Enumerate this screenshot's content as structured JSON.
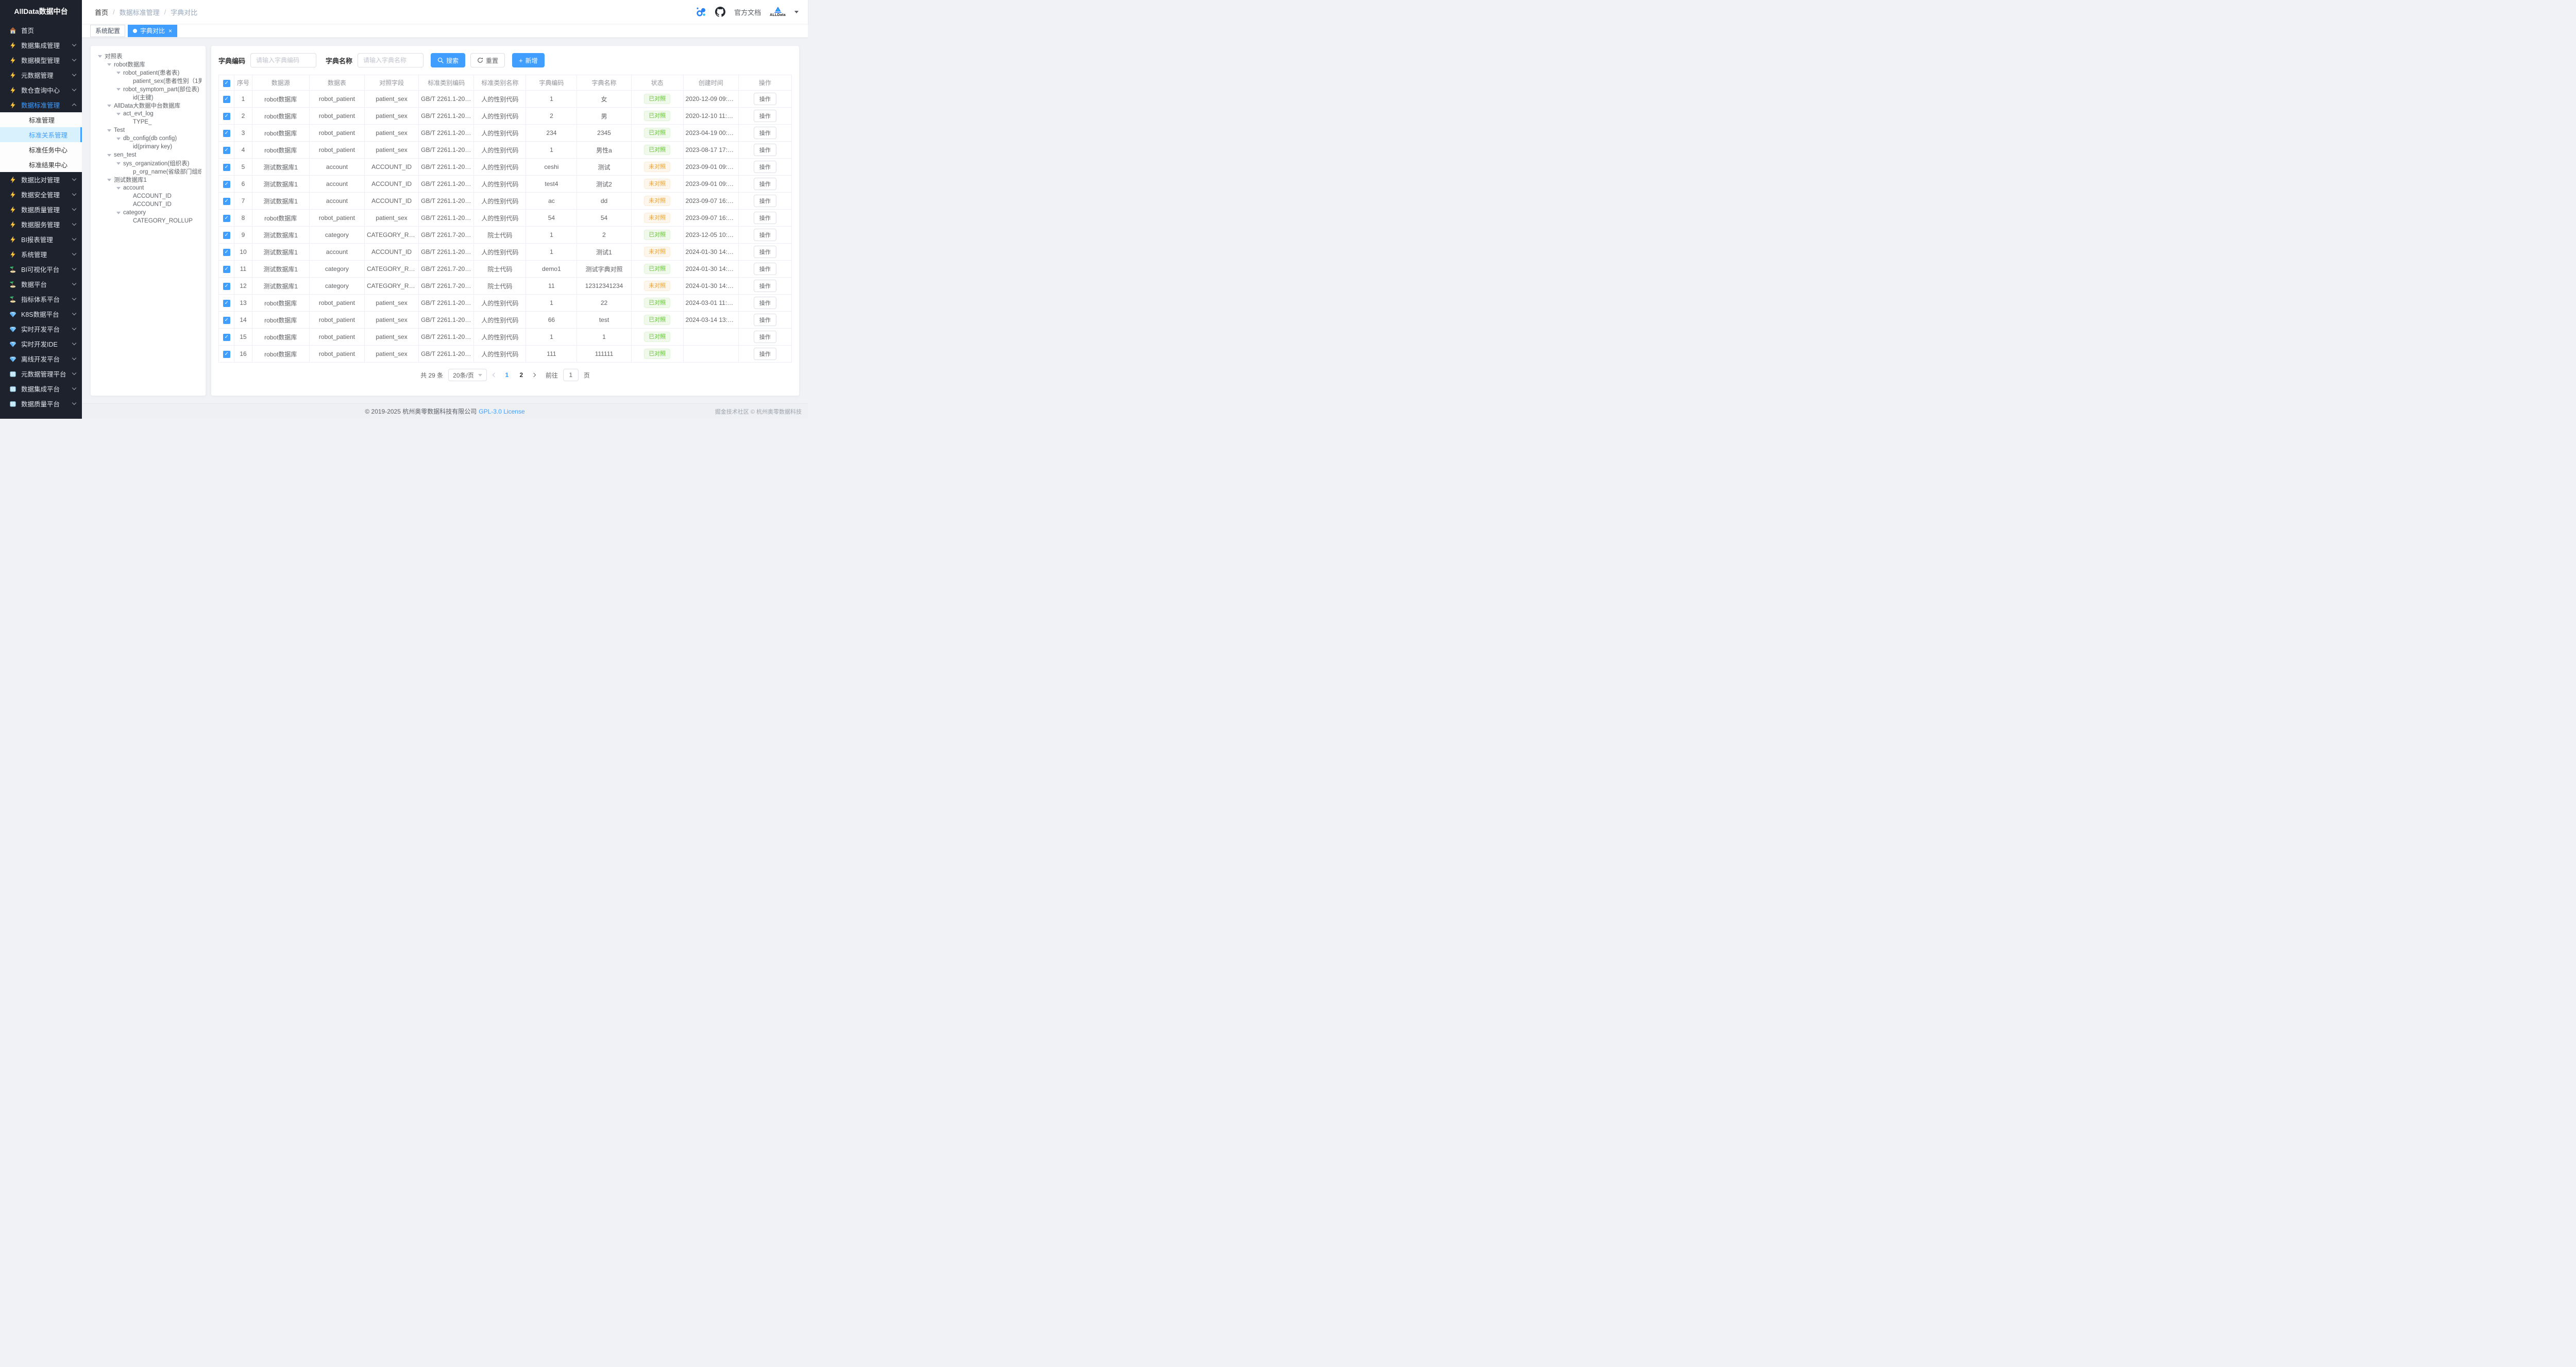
{
  "sidebar": {
    "title": "AllData数据中台",
    "items": [
      {
        "label": "首页",
        "icon": "home-icon"
      },
      {
        "label": "数据集成管理",
        "icon": "bolt-icon",
        "chevron": "down"
      },
      {
        "label": "数据模型管理",
        "icon": "bolt-icon",
        "chevron": "down"
      },
      {
        "label": "元数据管理",
        "icon": "bolt-icon",
        "chevron": "down"
      },
      {
        "label": "数仓查询中心",
        "icon": "bolt-icon",
        "chevron": "down"
      },
      {
        "label": "数据标准管理",
        "icon": "bolt-icon",
        "chevron": "up",
        "active": true
      },
      {
        "label": "标准管理",
        "sub": true
      },
      {
        "label": "标准关系管理",
        "sub": true,
        "selected": true
      },
      {
        "label": "标准任务中心",
        "sub": true
      },
      {
        "label": "标准结果中心",
        "sub": true
      },
      {
        "label": "数据比对管理",
        "icon": "bolt-icon",
        "chevron": "down"
      },
      {
        "label": "数据安全管理",
        "icon": "bolt-icon",
        "chevron": "down"
      },
      {
        "label": "数据质量管理",
        "icon": "bolt-icon",
        "chevron": "down"
      },
      {
        "label": "数据服务管理",
        "icon": "bolt-icon",
        "chevron": "down"
      },
      {
        "label": "BI报表管理",
        "icon": "bolt-icon",
        "chevron": "down"
      },
      {
        "label": "系统管理",
        "icon": "bolt-icon",
        "chevron": "down"
      },
      {
        "label": "BI可视化平台",
        "icon": "island-icon",
        "chevron": "down"
      },
      {
        "label": "数据平台",
        "icon": "island-icon",
        "chevron": "down"
      },
      {
        "label": "指标体系平台",
        "icon": "island-icon",
        "chevron": "down"
      },
      {
        "label": "K8S数据平台",
        "icon": "gem-icon",
        "chevron": "down"
      },
      {
        "label": "实时开发平台",
        "icon": "gem-icon",
        "chevron": "down"
      },
      {
        "label": "实时开发IDE",
        "icon": "gem-icon",
        "chevron": "down"
      },
      {
        "label": "离线开发平台",
        "icon": "gem-icon",
        "chevron": "down"
      },
      {
        "label": "元数据管理平台",
        "icon": "ice-icon",
        "chevron": "down"
      },
      {
        "label": "数据集成平台",
        "icon": "ice-icon",
        "chevron": "down"
      },
      {
        "label": "数据质量平台",
        "icon": "ice-icon",
        "chevron": "down"
      }
    ]
  },
  "header": {
    "breadcrumb": [
      "首页",
      "数据标准管理",
      "字典对比"
    ],
    "breadcrumb_sep": "/",
    "docs_label": "官方文档",
    "logo_text": "ALLData"
  },
  "tabbar": {
    "tabs": [
      {
        "label": "系统配置",
        "active": false
      },
      {
        "label": "字典对比",
        "active": true,
        "closable": true
      }
    ],
    "close_glyph": "×"
  },
  "tree": {
    "nodes": [
      {
        "label": "对照表",
        "level": 0,
        "leaf": false
      },
      {
        "label": "robot数据库",
        "level": 1,
        "leaf": false
      },
      {
        "label": "robot_patient(患者表)",
        "level": 2,
        "leaf": false
      },
      {
        "label": "patient_sex(患者性别（1男2女）)",
        "level": 3,
        "leaf": true
      },
      {
        "label": "robot_symptom_part(部位表)",
        "level": 2,
        "leaf": false
      },
      {
        "label": "id(主键)",
        "level": 3,
        "leaf": true
      },
      {
        "label": "AllData大数据中台数据库",
        "level": 1,
        "leaf": false
      },
      {
        "label": "act_evt_log",
        "level": 2,
        "leaf": false
      },
      {
        "label": "TYPE_",
        "level": 3,
        "leaf": true
      },
      {
        "label": "Test",
        "level": 1,
        "leaf": false
      },
      {
        "label": "db_config(db config)",
        "level": 2,
        "leaf": false
      },
      {
        "label": "id(primary key)",
        "level": 3,
        "leaf": true
      },
      {
        "label": "sen_test",
        "level": 1,
        "leaf": false
      },
      {
        "label": "sys_organization(组织表)",
        "level": 2,
        "leaf": false
      },
      {
        "label": "p_org_name(省级部门组织名称)",
        "level": 3,
        "leaf": true
      },
      {
        "label": "测试数据库1",
        "level": 1,
        "leaf": false
      },
      {
        "label": "account",
        "level": 2,
        "leaf": false
      },
      {
        "label": "ACCOUNT_ID",
        "level": 3,
        "leaf": true
      },
      {
        "label": "ACCOUNT_ID",
        "level": 3,
        "leaf": true
      },
      {
        "label": "category",
        "level": 2,
        "leaf": false
      },
      {
        "label": "CATEGORY_ROLLUP",
        "level": 3,
        "leaf": true
      }
    ]
  },
  "filters": {
    "code_label": "字典编码",
    "code_placeholder": "请输入字典编码",
    "name_label": "字典名称",
    "name_placeholder": "请输入字典名称",
    "search_label": "搜索",
    "reset_label": "重置",
    "add_label": "新增",
    "add_glyph": "+"
  },
  "table": {
    "check_glyph": "✓",
    "columns": [
      "序号",
      "数据源",
      "数据表",
      "对照字段",
      "标准类别编码",
      "标准类别名称",
      "字典编码",
      "字典名称",
      "状态",
      "创建时间",
      "操作"
    ],
    "rows": [
      {
        "no": "1",
        "source": "robot数据库",
        "table": "robot_patient",
        "field": "patient_sex",
        "std_code": "GB/T 2261.1-2003",
        "std_name": "人的性别代码",
        "dict_code": "1",
        "dict_name": "女",
        "status": "已对照",
        "status_type": "done",
        "created": "2020-12-09 09:30:08",
        "action": "操作"
      },
      {
        "no": "2",
        "source": "robot数据库",
        "table": "robot_patient",
        "field": "patient_sex",
        "std_code": "GB/T 2261.1-2003",
        "std_name": "人的性别代码",
        "dict_code": "2",
        "dict_name": "男",
        "status": "已对照",
        "status_type": "done",
        "created": "2020-12-10 11:30:19",
        "action": "操作"
      },
      {
        "no": "3",
        "source": "robot数据库",
        "table": "robot_patient",
        "field": "patient_sex",
        "std_code": "GB/T 2261.1-2003",
        "std_name": "人的性别代码",
        "dict_code": "234",
        "dict_name": "2345",
        "status": "已对照",
        "status_type": "done",
        "created": "2023-04-19 00:11:01",
        "action": "操作"
      },
      {
        "no": "4",
        "source": "robot数据库",
        "table": "robot_patient",
        "field": "patient_sex",
        "std_code": "GB/T 2261.1-2003",
        "std_name": "人的性别代码",
        "dict_code": "1",
        "dict_name": "男性a",
        "status": "已对照",
        "status_type": "done",
        "created": "2023-08-17 17:04:02",
        "action": "操作"
      },
      {
        "no": "5",
        "source": "测试数据库1",
        "table": "account",
        "field": "ACCOUNT_ID",
        "std_code": "GB/T 2261.1-2003",
        "std_name": "人的性别代码",
        "dict_code": "ceshi",
        "dict_name": "测试",
        "status": "未对照",
        "status_type": "pending",
        "created": "2023-09-01 09:39:04",
        "action": "操作"
      },
      {
        "no": "6",
        "source": "测试数据库1",
        "table": "account",
        "field": "ACCOUNT_ID",
        "std_code": "GB/T 2261.1-2003",
        "std_name": "人的性别代码",
        "dict_code": "test4",
        "dict_name": "测试2",
        "status": "未对照",
        "status_type": "pending",
        "created": "2023-09-01 09:47:33",
        "action": "操作"
      },
      {
        "no": "7",
        "source": "测试数据库1",
        "table": "account",
        "field": "ACCOUNT_ID",
        "std_code": "GB/T 2261.1-2003",
        "std_name": "人的性别代码",
        "dict_code": "ac",
        "dict_name": "dd",
        "status": "未对照",
        "status_type": "pending",
        "created": "2023-09-07 16:37:22",
        "action": "操作"
      },
      {
        "no": "8",
        "source": "robot数据库",
        "table": "robot_patient",
        "field": "patient_sex",
        "std_code": "GB/T 2261.1-2003",
        "std_name": "人的性别代码",
        "dict_code": "54",
        "dict_name": "54",
        "status": "未对照",
        "status_type": "pending",
        "created": "2023-09-07 16:51:49",
        "action": "操作"
      },
      {
        "no": "9",
        "source": "测试数据库1",
        "table": "category",
        "field": "CATEGORY_ROLLUP",
        "std_code": "GB/T 2261.7-2003",
        "std_name": "院士代码",
        "dict_code": "1",
        "dict_name": "2",
        "status": "已对照",
        "status_type": "done",
        "created": "2023-12-05 10:14:52",
        "action": "操作"
      },
      {
        "no": "10",
        "source": "测试数据库1",
        "table": "account",
        "field": "ACCOUNT_ID",
        "std_code": "GB/T 2261.1-2003",
        "std_name": "人的性别代码",
        "dict_code": "1",
        "dict_name": "测试1",
        "status": "未对照",
        "status_type": "pending",
        "created": "2024-01-30 14:19:50",
        "action": "操作"
      },
      {
        "no": "11",
        "source": "测试数据库1",
        "table": "category",
        "field": "CATEGORY_ROLLUP",
        "std_code": "GB/T 2261.7-2003",
        "std_name": "院士代码",
        "dict_code": "demo1",
        "dict_name": "测试字典对照",
        "status": "已对照",
        "status_type": "done",
        "created": "2024-01-30 14:20:39",
        "action": "操作"
      },
      {
        "no": "12",
        "source": "测试数据库1",
        "table": "category",
        "field": "CATEGORY_ROLLUP",
        "std_code": "GB/T 2261.7-2003",
        "std_name": "院士代码",
        "dict_code": "11",
        "dict_name": "12312341234",
        "status": "未对照",
        "status_type": "pending",
        "created": "2024-01-30 14:41:11",
        "action": "操作"
      },
      {
        "no": "13",
        "source": "robot数据库",
        "table": "robot_patient",
        "field": "patient_sex",
        "std_code": "GB/T 2261.1-2003",
        "std_name": "人的性别代码",
        "dict_code": "1",
        "dict_name": "22",
        "status": "已对照",
        "status_type": "done",
        "created": "2024-03-01 11:08:54",
        "action": "操作"
      },
      {
        "no": "14",
        "source": "robot数据库",
        "table": "robot_patient",
        "field": "patient_sex",
        "std_code": "GB/T 2261.1-2003",
        "std_name": "人的性别代码",
        "dict_code": "66",
        "dict_name": "test",
        "status": "已对照",
        "status_type": "done",
        "created": "2024-03-14 13:43:22",
        "action": "操作"
      },
      {
        "no": "15",
        "source": "robot数据库",
        "table": "robot_patient",
        "field": "patient_sex",
        "std_code": "GB/T 2261.1-2003",
        "std_name": "人的性别代码",
        "dict_code": "1",
        "dict_name": "1",
        "status": "已对照",
        "status_type": "done",
        "created": "",
        "action": "操作"
      },
      {
        "no": "16",
        "source": "robot数据库",
        "table": "robot_patient",
        "field": "patient_sex",
        "std_code": "GB/T 2261.1-2003",
        "std_name": "人的性别代码",
        "dict_code": "111",
        "dict_name": "111111",
        "status": "已对照",
        "status_type": "done",
        "created": "",
        "action": "操作"
      }
    ]
  },
  "pagination": {
    "total_text": "共 29 条",
    "page_size_label": "20条/页",
    "pages": [
      "1",
      "2"
    ],
    "current": "1",
    "goto_label": "前往",
    "goto_value": "1",
    "page_label": "页"
  },
  "footer": {
    "copyright": "© 2019-2025 杭州奥零数据科技有限公司",
    "license": "GPL-3.0 License",
    "right_text": "掘金技术社区 © 杭州奥零数据科技"
  }
}
